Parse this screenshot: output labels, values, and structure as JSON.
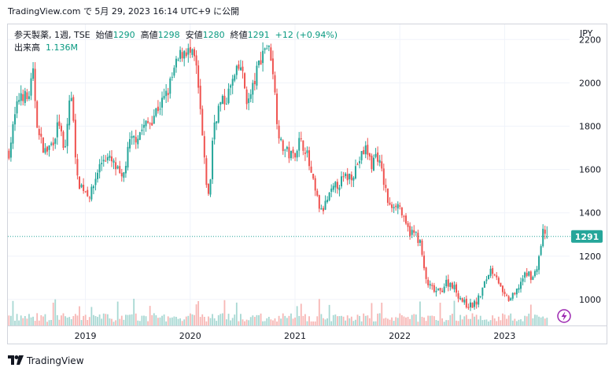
{
  "header": {
    "published": "TradingView.com で 5月 29, 2023 16:14 UTC+9 に公開"
  },
  "legend": {
    "symbol": "参天製薬, 1週, TSE",
    "open_label": "始値",
    "open": "1290",
    "high_label": "高値",
    "high": "1298",
    "low_label": "安値",
    "low": "1280",
    "close_label": "終値",
    "close": "1291",
    "change": "+12 (+0.94%)",
    "volume_label": "出来高",
    "volume": "1.136M"
  },
  "currency": "JPY",
  "last_price_label": "1291",
  "footer": {
    "brand": "TradingView"
  },
  "colors": {
    "up": "#26a69a",
    "down": "#ef5350",
    "price_line": "#26a69a",
    "grid": "#f0f3fa",
    "up_vol": "#a8d8d3",
    "down_vol": "#f7b7b5"
  },
  "chart_data": {
    "type": "candlestick",
    "ylim": [
      880,
      2270
    ],
    "y_ticks": [
      1000,
      1200,
      1400,
      1600,
      1800,
      2000,
      2200
    ],
    "x_ticks": [
      {
        "label": "2019",
        "t": 2019.0
      },
      {
        "label": "2020",
        "t": 2020.0
      },
      {
        "label": "2021",
        "t": 2021.0
      },
      {
        "label": "2022",
        "t": 2022.0
      },
      {
        "label": "2023",
        "t": 2023.0
      }
    ],
    "x_range": [
      2018.26,
      2023.62
    ],
    "last_t": 2023.41,
    "last_price": 1291,
    "close_path": [
      [
        2018.27,
        1680
      ],
      [
        2018.33,
        1850
      ],
      [
        2018.38,
        1960
      ],
      [
        2018.45,
        1920
      ],
      [
        2018.5,
        2040
      ],
      [
        2018.55,
        1760
      ],
      [
        2018.62,
        1680
      ],
      [
        2018.68,
        1720
      ],
      [
        2018.75,
        1820
      ],
      [
        2018.8,
        1650
      ],
      [
        2018.85,
        1940
      ],
      [
        2018.88,
        1890
      ],
      [
        2018.92,
        1550
      ],
      [
        2018.97,
        1520
      ],
      [
        2019.05,
        1480
      ],
      [
        2019.12,
        1600
      ],
      [
        2019.18,
        1660
      ],
      [
        2019.24,
        1640
      ],
      [
        2019.3,
        1600
      ],
      [
        2019.35,
        1540
      ],
      [
        2019.42,
        1720
      ],
      [
        2019.5,
        1760
      ],
      [
        2019.56,
        1800
      ],
      [
        2019.62,
        1820
      ],
      [
        2019.68,
        1880
      ],
      [
        2019.72,
        1900
      ],
      [
        2019.78,
        1950
      ],
      [
        2019.85,
        2060
      ],
      [
        2019.9,
        2120
      ],
      [
        2019.95,
        2160
      ],
      [
        2020.0,
        2130
      ],
      [
        2020.05,
        2100
      ],
      [
        2020.1,
        1850
      ],
      [
        2020.14,
        1600
      ],
      [
        2020.18,
        1450
      ],
      [
        2020.22,
        1800
      ],
      [
        2020.28,
        1900
      ],
      [
        2020.34,
        1920
      ],
      [
        2020.4,
        2000
      ],
      [
        2020.48,
        2080
      ],
      [
        2020.55,
        1900
      ],
      [
        2020.6,
        1980
      ],
      [
        2020.66,
        2100
      ],
      [
        2020.72,
        2180
      ],
      [
        2020.78,
        2120
      ],
      [
        2020.82,
        1870
      ],
      [
        2020.86,
        1720
      ],
      [
        2020.92,
        1680
      ],
      [
        2020.98,
        1660
      ],
      [
        2021.04,
        1730
      ],
      [
        2021.1,
        1700
      ],
      [
        2021.16,
        1560
      ],
      [
        2021.2,
        1480
      ],
      [
        2021.25,
        1400
      ],
      [
        2021.32,
        1470
      ],
      [
        2021.4,
        1530
      ],
      [
        2021.48,
        1560
      ],
      [
        2021.55,
        1580
      ],
      [
        2021.62,
        1650
      ],
      [
        2021.68,
        1700
      ],
      [
        2021.73,
        1620
      ],
      [
        2021.78,
        1680
      ],
      [
        2021.84,
        1560
      ],
      [
        2021.9,
        1420
      ],
      [
        2021.95,
        1450
      ],
      [
        2022.0,
        1430
      ],
      [
        2022.05,
        1340
      ],
      [
        2022.1,
        1310
      ],
      [
        2022.16,
        1300
      ],
      [
        2022.2,
        1250
      ],
      [
        2022.24,
        1100
      ],
      [
        2022.28,
        1060
      ],
      [
        2022.33,
        1040
      ],
      [
        2022.38,
        1030
      ],
      [
        2022.44,
        1080
      ],
      [
        2022.5,
        1070
      ],
      [
        2022.56,
        1020
      ],
      [
        2022.62,
        980
      ],
      [
        2022.68,
        970
      ],
      [
        2022.74,
        990
      ],
      [
        2022.8,
        1060
      ],
      [
        2022.86,
        1140
      ],
      [
        2022.92,
        1120
      ],
      [
        2022.98,
        1020
      ],
      [
        2023.04,
        1000
      ],
      [
        2023.1,
        1020
      ],
      [
        2023.16,
        1090
      ],
      [
        2023.22,
        1120
      ],
      [
        2023.28,
        1100
      ],
      [
        2023.33,
        1200
      ],
      [
        2023.37,
        1320
      ],
      [
        2023.41,
        1291
      ]
    ]
  }
}
